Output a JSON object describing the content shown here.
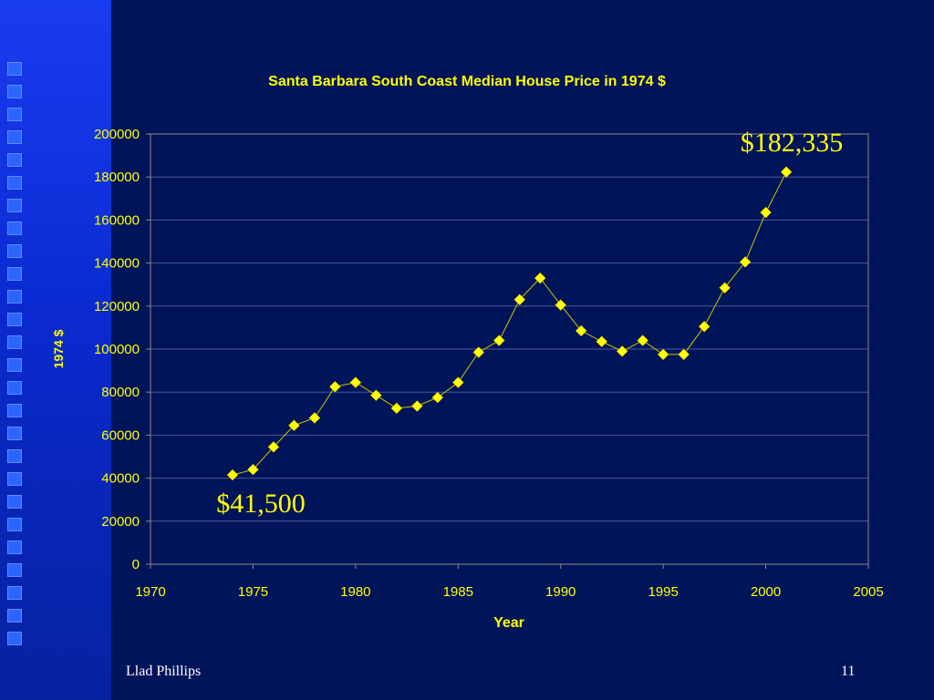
{
  "chart_data": {
    "type": "line",
    "title": "Santa Barbara South Coast Median House Price in 1974 $",
    "xlabel": "Year",
    "ylabel": "1974 $",
    "xlim": [
      1970,
      2005
    ],
    "ylim": [
      0,
      200000
    ],
    "xticks": [
      1970,
      1975,
      1980,
      1985,
      1990,
      1995,
      2000,
      2005
    ],
    "yticks": [
      0,
      20000,
      40000,
      60000,
      80000,
      100000,
      120000,
      140000,
      160000,
      180000,
      200000
    ],
    "grid": "horizontal",
    "marker": "diamond",
    "colors": {
      "marker": "#ffff00",
      "line": "#c8c800",
      "text": "#ffff00",
      "grid": "#4a5a9a",
      "plot_border": "#8a8a8a"
    },
    "x": [
      1974,
      1975,
      1976,
      1977,
      1978,
      1979,
      1980,
      1981,
      1982,
      1983,
      1984,
      1985,
      1986,
      1987,
      1988,
      1989,
      1990,
      1991,
      1992,
      1993,
      1994,
      1995,
      1996,
      1997,
      1998,
      1999,
      2000,
      2001
    ],
    "y": [
      41500,
      44000,
      54500,
      64500,
      68000,
      82500,
      84500,
      78500,
      72500,
      73500,
      77500,
      84500,
      98500,
      104000,
      123000,
      133000,
      120500,
      108500,
      103500,
      99000,
      104000,
      97500,
      97500,
      110500,
      128500,
      140500,
      163500,
      182335
    ],
    "annotations": [
      {
        "text": "$182,335",
        "x": 2001,
        "y": 182335
      },
      {
        "text": "$41,500",
        "x": 1974,
        "y": 41500
      }
    ]
  },
  "footer": {
    "author": "Llad Phillips",
    "page": "11"
  }
}
